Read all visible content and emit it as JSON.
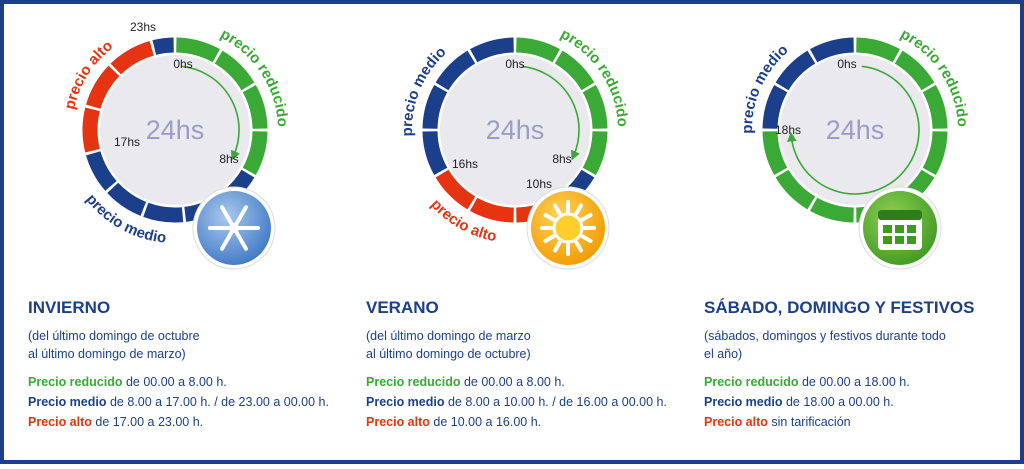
{
  "panels": [
    {
      "clock": {
        "center": "24hs",
        "hours": [
          "23hs",
          "0hs",
          "17hs",
          "8hs"
        ],
        "arcs": [
          "precio alto",
          "precio reducido",
          "precio medio"
        ]
      },
      "title": "INVIERNO",
      "subtitle": [
        "(del último domingo de octubre",
        "al último domingo de marzo)"
      ],
      "rates": [
        {
          "label": "Precio reducido",
          "text": "de 00.00 a 8.00 h."
        },
        {
          "label": "Precio medio",
          "text": "de 8.00 a 17.00 h. / de 23.00 a 00.00 h."
        },
        {
          "label": "Precio alto",
          "text": "de 17.00 a 23.00 h."
        }
      ]
    },
    {
      "clock": {
        "center": "24hs",
        "hours": [
          "0hs",
          "16hs",
          "8hs",
          "10hs"
        ],
        "arcs": [
          "precio medio",
          "precio reducido",
          "precio alto"
        ]
      },
      "title": "VERANO",
      "subtitle": [
        "(del último domingo de marzo",
        "al último domingo de octubre)"
      ],
      "rates": [
        {
          "label": "Precio reducido",
          "text": "de 00.00 a 8.00 h."
        },
        {
          "label": "Precio medio",
          "text": "de 8.00 a 10.00 h. / de 16.00 a 00.00 h."
        },
        {
          "label": "Precio alto",
          "text": "de 10.00 a 16.00 h."
        }
      ]
    },
    {
      "clock": {
        "center": "24hs",
        "hours": [
          "0hs",
          "18hs"
        ],
        "arcs": [
          "precio medio",
          "precio reducido"
        ]
      },
      "title": "SÁBADO, DOMINGO Y FESTIVOS",
      "subtitle": [
        "(sábados, domingos y festivos durante todo",
        "el año)"
      ],
      "rates": [
        {
          "label": "Precio reducido",
          "text": "de 00.00 a 18.00 h."
        },
        {
          "label": "Precio medio",
          "text": "de 18.00 a 00.00 h."
        },
        {
          "label": "Precio alto",
          "text": "sin tarificación"
        }
      ]
    }
  ]
}
